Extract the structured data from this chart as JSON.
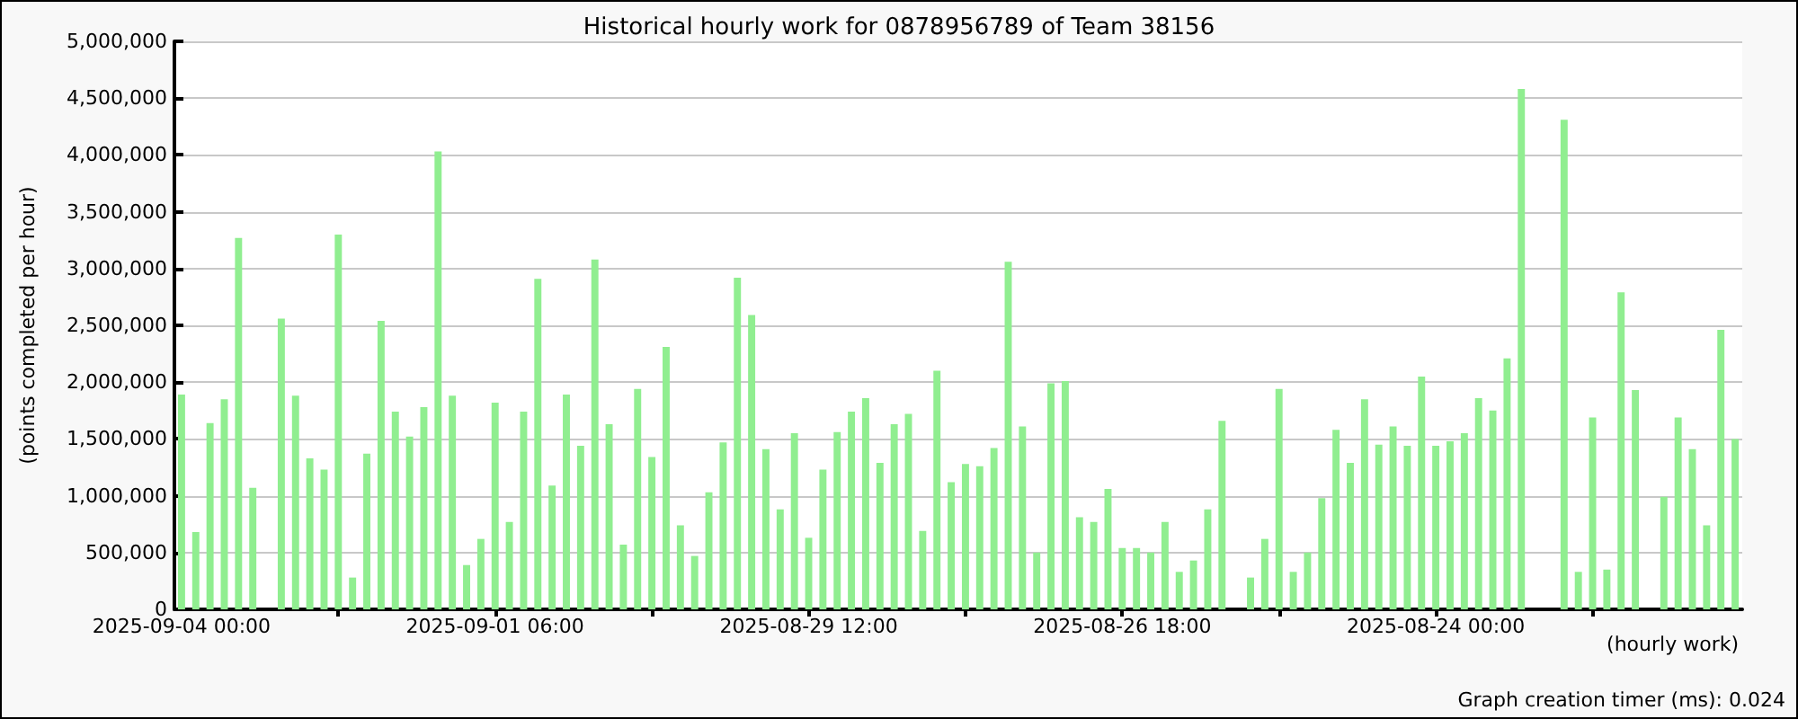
{
  "chart_data": {
    "type": "bar",
    "title": "Historical hourly work for 0878956789 of Team 38156",
    "ylabel": "(points completed per hour)",
    "xlabel": "(hourly work)",
    "annotations": [
      "Graph creation timer (ms): 0.024"
    ],
    "categories": [
      "2025-09-04 00:00",
      null,
      null,
      null,
      null,
      null,
      null,
      null,
      null,
      null,
      null,
      null,
      null,
      null,
      null,
      null,
      null,
      null,
      null,
      null,
      null,
      null,
      "2025-09-01 06:00",
      null,
      null,
      null,
      null,
      null,
      null,
      null,
      null,
      null,
      null,
      null,
      null,
      null,
      null,
      null,
      null,
      null,
      null,
      null,
      null,
      null,
      "2025-08-29 12:00",
      null,
      null,
      null,
      null,
      null,
      null,
      null,
      null,
      null,
      null,
      null,
      null,
      null,
      null,
      null,
      null,
      null,
      null,
      null,
      null,
      null,
      "2025-08-26 18:00",
      null,
      null,
      null,
      null,
      null,
      null,
      null,
      null,
      null,
      null,
      null,
      null,
      null,
      null,
      null,
      null,
      null,
      null,
      null,
      null,
      null,
      "2025-08-24 00:00",
      null,
      null,
      null,
      null,
      null,
      null,
      null,
      null,
      null,
      null,
      null,
      null,
      null,
      null,
      null,
      null,
      null,
      null,
      null,
      null,
      null
    ],
    "values": [
      1890000,
      680000,
      1640000,
      1850000,
      3270000,
      1070000,
      null,
      2560000,
      1880000,
      1330000,
      1230000,
      3300000,
      280000,
      1370000,
      2540000,
      1740000,
      1520000,
      1780000,
      4030000,
      1880000,
      390000,
      620000,
      1820000,
      770000,
      1740000,
      2910000,
      1090000,
      1890000,
      1440000,
      3080000,
      1630000,
      570000,
      1940000,
      1340000,
      2310000,
      740000,
      470000,
      1030000,
      1470000,
      2920000,
      2590000,
      1410000,
      880000,
      1550000,
      630000,
      1230000,
      1560000,
      1740000,
      1860000,
      1290000,
      1630000,
      1720000,
      690000,
      2100000,
      1120000,
      1280000,
      1260000,
      1420000,
      3060000,
      1610000,
      500000,
      1990000,
      2010000,
      810000,
      770000,
      1060000,
      540000,
      540000,
      500000,
      770000,
      330000,
      430000,
      880000,
      1660000,
      null,
      280000,
      620000,
      1940000,
      330000,
      500000,
      980000,
      1580000,
      1290000,
      1850000,
      1450000,
      1610000,
      1440000,
      2050000,
      1440000,
      1480000,
      1550000,
      1860000,
      1750000,
      2210000,
      4580000,
      null,
      null,
      4310000,
      330000,
      1690000,
      350000,
      2790000,
      1930000,
      null,
      990000,
      1690000,
      1410000,
      740000,
      2460000,
      1500000
    ],
    "color": "#90ee90",
    "ylim": [
      0,
      5000000
    ],
    "yticks": [
      0,
      {
        "value": 500000,
        "label": "500,000"
      },
      {
        "value": 1000000,
        "label": "1,000,000"
      },
      {
        "value": 1500000,
        "label": "1,500,000"
      },
      {
        "value": 2000000,
        "label": "2,000,000"
      },
      {
        "value": 2500000,
        "label": "2,500,000"
      },
      {
        "value": 3000000,
        "label": "3,000,000"
      },
      {
        "value": 3500000,
        "label": "3,500,000"
      },
      {
        "value": 4000000,
        "label": "4,000,000"
      },
      {
        "value": 4500000,
        "label": "4,500,000"
      },
      {
        "value": 5000000,
        "label": "5,000,000"
      }
    ],
    "grid": "y"
  }
}
